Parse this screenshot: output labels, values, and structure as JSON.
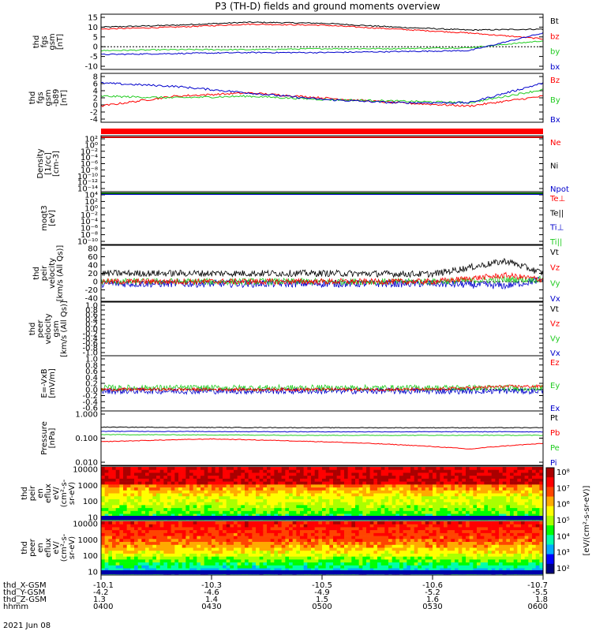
{
  "title": "P3 (TH-D) fields and ground moments overview",
  "footer_date": "2021 Jun 08",
  "colors": {
    "black": "#000000",
    "red": "#ff0000",
    "green": "#22cc22",
    "blue": "#0000cc"
  },
  "panels": [
    {
      "id": "fgs",
      "ylabel": [
        "thd",
        "fgs",
        "gsm",
        "[nT]"
      ],
      "ticks": [
        "15",
        "10",
        "5",
        "0",
        "-5",
        "-10"
      ],
      "legend": [
        {
          "t": "Bt",
          "c": "#000000"
        },
        {
          "t": "bz",
          "c": "#ff0000"
        },
        {
          "t": "by",
          "c": "#22cc22"
        },
        {
          "t": "bx",
          "c": "#0000cc"
        }
      ]
    },
    {
      "id": "fgs_b",
      "ylabel": [
        "thd",
        "fgs",
        "gsm",
        "-b89",
        "[nT]"
      ],
      "ticks": [
        "8",
        "6",
        "4",
        "2",
        "0",
        "-2",
        "-4"
      ],
      "legend": [
        {
          "t": "Bz",
          "c": "#ff0000"
        },
        {
          "t": "By",
          "c": "#22cc22"
        },
        {
          "t": "Bx",
          "c": "#0000cc"
        }
      ]
    },
    {
      "id": "density",
      "ylabel": [
        "Density",
        "[1/cc]",
        "[cm-3]"
      ],
      "ticks": [
        "10²",
        "10⁰",
        "10⁻²",
        "10⁻⁴",
        "10⁻⁶",
        "10⁻⁸",
        "10⁻¹⁰",
        "10⁻¹²",
        "10⁻¹⁴"
      ],
      "legend": [
        {
          "t": "Ne",
          "c": "#ff0000"
        },
        {
          "t": "Ni",
          "c": "#000000"
        },
        {
          "t": "Npot",
          "c": "#0000cc"
        }
      ]
    },
    {
      "id": "temp",
      "ylabel": [
        "moqt3",
        "[eV]"
      ],
      "ticks": [
        "10⁴",
        "10²",
        "10⁰",
        "10⁻²",
        "10⁻⁴",
        "10⁻⁶",
        "10⁻⁸",
        "10⁻¹⁰"
      ],
      "legend": [
        {
          "t": "Te⊥",
          "c": "#ff0000"
        },
        {
          "t": "Te||",
          "c": "#000000"
        },
        {
          "t": "Ti⊥",
          "c": "#0000cc"
        },
        {
          "t": "Ti||",
          "c": "#22cc22"
        }
      ]
    },
    {
      "id": "peir_v",
      "ylabel": [
        "thd",
        "peir",
        "velocity",
        "[km/s (All Qs)]"
      ],
      "ticks": [
        "80",
        "60",
        "40",
        "20",
        "0",
        "-20",
        "-40"
      ],
      "legend": [
        {
          "t": "Vt",
          "c": "#000000"
        },
        {
          "t": "Vz",
          "c": "#ff0000"
        },
        {
          "t": "Vy",
          "c": "#22cc22"
        },
        {
          "t": "Vx",
          "c": "#0000cc"
        }
      ]
    },
    {
      "id": "peer_v",
      "ylabel": [
        "thd",
        "peer",
        "velocity",
        "gsm",
        "[km/s (All Qs)]"
      ],
      "ticks": [
        "1.0",
        "0.8",
        "0.6",
        "0.4",
        "0.2",
        "0.0",
        "-0.2",
        "-0.4",
        "-0.6",
        "-0.8",
        "-1.0"
      ],
      "legend": [
        {
          "t": "Vt",
          "c": "#000000"
        },
        {
          "t": "Vz",
          "c": "#ff0000"
        },
        {
          "t": "Vy",
          "c": "#22cc22"
        },
        {
          "t": "Vx",
          "c": "#0000cc"
        }
      ]
    },
    {
      "id": "efield",
      "ylabel": [
        "E=-VxB",
        "[mV/m]"
      ],
      "ticks": [
        "1.0",
        "0.8",
        "0.6",
        "0.4",
        "0.2",
        "0.0",
        "-0.2",
        "-0.4",
        "-0.6"
      ],
      "legend": [
        {
          "t": "Ez",
          "c": "#ff0000"
        },
        {
          "t": "Ey",
          "c": "#22cc22"
        },
        {
          "t": "Ex",
          "c": "#0000cc"
        }
      ]
    },
    {
      "id": "pressure",
      "ylabel": [
        "Pressure",
        "[nPa]"
      ],
      "ticks": [
        "1.000",
        "0.100",
        "0.010"
      ],
      "legend": [
        {
          "t": "Pt",
          "c": "#000000"
        },
        {
          "t": "Pb",
          "c": "#ff0000"
        },
        {
          "t": "Pe",
          "c": "#22cc22"
        },
        {
          "t": "Pi",
          "c": "#0000cc"
        }
      ]
    },
    {
      "id": "peir_spec",
      "ylabel": [
        "thd",
        "peir",
        "en",
        "eflux",
        "eV/",
        "(cm²-s-",
        "sr-eV)"
      ],
      "ticks": [
        "10000",
        "1000",
        "100",
        "10"
      ],
      "legend": []
    },
    {
      "id": "peer_spec",
      "ylabel": [
        "thd",
        "peer",
        "en",
        "eflux",
        "eV/",
        "(cm²-s-",
        "sr-eV)"
      ],
      "ticks": [
        "10000",
        "1000",
        "100",
        "10"
      ],
      "legend": []
    }
  ],
  "colorbar": {
    "label": "[eV/(cm²-s-sr-eV)]",
    "ticks": [
      "10⁸",
      "10⁷",
      "10⁶",
      "10⁵",
      "10⁴",
      "10³",
      "10²"
    ]
  },
  "xaxis": {
    "row_labels": [
      "thd_X-GSM",
      "thd_Y-GSM",
      "thd_Z-GSM",
      "hhmm"
    ],
    "columns": [
      {
        "vals": [
          "-10.1",
          "-4.2",
          "1.3",
          "0400"
        ]
      },
      {
        "vals": [
          "-10.3",
          "-4.6",
          "1.4",
          "0430"
        ]
      },
      {
        "vals": [
          "-10.5",
          "-4.9",
          "1.5",
          "0500"
        ]
      },
      {
        "vals": [
          "-10.6",
          "-5.2",
          "1.6",
          "0530"
        ]
      },
      {
        "vals": [
          "-10.7",
          "-5.5",
          "1.8",
          "0600"
        ]
      }
    ]
  },
  "chart_data": {
    "type": "line",
    "title": "P3 (TH-D) fields and ground moments overview",
    "x_time_range": [
      "2021-06-08 04:00",
      "2021-06-08 06:00"
    ],
    "panels": [
      {
        "name": "thd fgs gsm [nT]",
        "ylim": [
          -10,
          15
        ],
        "series": [
          {
            "name": "Bt",
            "t": [
              0,
              20,
              40,
              60,
              80,
              100,
              120
            ],
            "values": [
              10,
              11,
              12.5,
              12,
              10,
              8.5,
              9
            ]
          },
          {
            "name": "bz",
            "t": [
              0,
              20,
              40,
              60,
              80,
              100,
              120
            ],
            "values": [
              9,
              10,
              11.5,
              11,
              9,
              7,
              4
            ]
          },
          {
            "name": "by",
            "t": [
              0,
              20,
              40,
              60,
              80,
              100,
              120
            ],
            "values": [
              -2,
              -1.5,
              -1.5,
              -1,
              -1,
              -0.5,
              3
            ]
          },
          {
            "name": "bx",
            "t": [
              0,
              20,
              40,
              60,
              80,
              100,
              120
            ],
            "values": [
              -4,
              -3.5,
              -3,
              -3,
              -2.5,
              -2,
              7
            ]
          }
        ]
      },
      {
        "name": "thd fgs gsm -b89 [nT]",
        "ylim": [
          -5,
          8
        ],
        "series": [
          {
            "name": "Bz",
            "t": [
              0,
              20,
              40,
              60,
              80,
              100,
              120
            ],
            "values": [
              -1,
              2,
              3,
              1.5,
              0,
              -1,
              2
            ]
          },
          {
            "name": "By",
            "t": [
              0,
              20,
              40,
              60,
              80,
              100,
              120
            ],
            "values": [
              2,
              1.5,
              2,
              1,
              0.5,
              0,
              4
            ]
          },
          {
            "name": "Bx",
            "t": [
              0,
              20,
              40,
              60,
              80,
              100,
              120
            ],
            "values": [
              6,
              5,
              3,
              1,
              0,
              0,
              6
            ]
          }
        ]
      },
      {
        "name": "thd peir velocity [km/s (All Qs)]",
        "ylim": [
          -40,
          80
        ],
        "series": [
          {
            "name": "Vt",
            "t": [
              0,
              30,
              60,
              90,
              110,
              120
            ],
            "values": [
              20,
              20,
              20,
              18,
              50,
              20
            ]
          },
          {
            "name": "Vz",
            "t": [
              0,
              30,
              60,
              90,
              110,
              120
            ],
            "values": [
              0,
              0,
              0,
              0,
              15,
              5
            ]
          },
          {
            "name": "Vy",
            "t": [
              0,
              30,
              60,
              90,
              110,
              120
            ],
            "values": [
              0,
              0,
              0,
              0,
              5,
              5
            ]
          },
          {
            "name": "Vx",
            "t": [
              0,
              30,
              60,
              90,
              110,
              120
            ],
            "values": [
              -5,
              -5,
              -5,
              -5,
              -10,
              5
            ]
          }
        ]
      },
      {
        "name": "E=-VxB [mV/m]",
        "ylim": [
          -0.6,
          1.0
        ],
        "series": [
          {
            "name": "Ez",
            "t": [
              0,
              30,
              60,
              90,
              110,
              120
            ],
            "values": [
              0,
              0,
              0,
              0,
              0.1,
              0.1
            ]
          },
          {
            "name": "Ey",
            "t": [
              0,
              30,
              60,
              90,
              110,
              120
            ],
            "values": [
              0.05,
              0.05,
              0.05,
              0.05,
              0.05,
              0.05
            ]
          },
          {
            "name": "Ex",
            "t": [
              0,
              30,
              60,
              90,
              110,
              120
            ],
            "values": [
              -0.05,
              -0.05,
              -0.05,
              -0.05,
              -0.05,
              -0.05
            ]
          }
        ]
      },
      {
        "name": "Pressure [nPa]",
        "ylim": [
          0.004,
          1.5
        ],
        "yscale": "log",
        "series": [
          {
            "name": "Pt",
            "t": [
              0,
              60,
              120
            ],
            "values": [
              0.3,
              0.28,
              0.28
            ]
          },
          {
            "name": "Pb",
            "t": [
              0,
              30,
              60,
              100,
              120
            ],
            "values": [
              0.05,
              0.07,
              0.05,
              0.02,
              0.04
            ]
          },
          {
            "name": "Pe",
            "t": [
              0,
              60,
              120
            ],
            "values": [
              0.12,
              0.11,
              0.11
            ]
          },
          {
            "name": "Pi",
            "t": [
              0,
              60,
              120
            ],
            "values": [
              0.18,
              0.17,
              0.17
            ]
          }
        ]
      }
    ]
  }
}
